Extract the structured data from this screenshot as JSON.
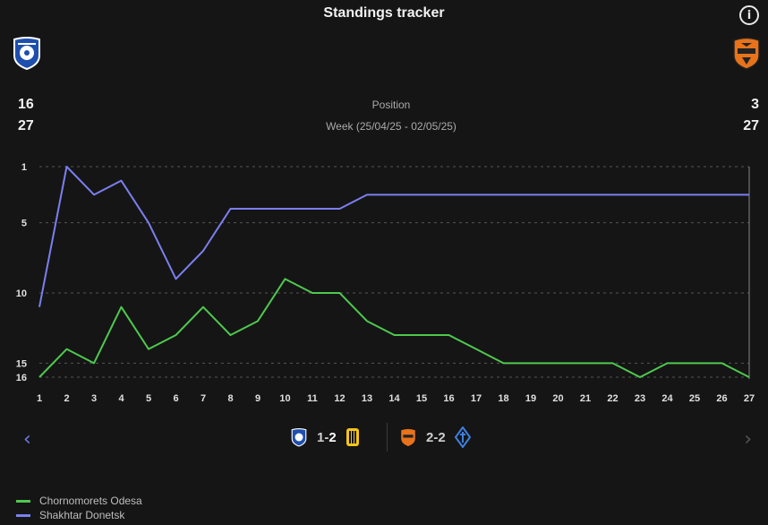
{
  "header": {
    "title": "Standings tracker",
    "info_icon": "info-icon"
  },
  "teams": {
    "home": {
      "name": "Chornomorets Odesa",
      "position": "16",
      "week": "27",
      "color": "#4ec94e"
    },
    "away": {
      "name": "Shakhtar Donetsk",
      "position": "3",
      "week": "27",
      "color": "#7b7ff0"
    }
  },
  "labels": {
    "position": "Position",
    "week": "Week (25/04/25 - 02/05/25)"
  },
  "matches": [
    {
      "home_score": "1",
      "away_score": "2",
      "sep": "-"
    },
    {
      "home_score": "2",
      "away_score": "2",
      "sep": "-"
    }
  ],
  "chart_data": {
    "type": "line",
    "x": [
      1,
      2,
      3,
      4,
      5,
      6,
      7,
      8,
      9,
      10,
      11,
      12,
      13,
      14,
      15,
      16,
      17,
      18,
      19,
      20,
      21,
      22,
      23,
      24,
      25,
      26,
      27
    ],
    "y_ticks": [
      1,
      5,
      10,
      15,
      16
    ],
    "y_reversed": true,
    "ylim": [
      1,
      16
    ],
    "series": [
      {
        "name": "Chornomorets Odesa",
        "color": "#4ec94e",
        "values": [
          16,
          14,
          15,
          11,
          14,
          13,
          11,
          13,
          12,
          9,
          10,
          10,
          12,
          13,
          13,
          13,
          14,
          15,
          15,
          15,
          15,
          15,
          16,
          15,
          15,
          15,
          16
        ]
      },
      {
        "name": "Shakhtar Donetsk",
        "color": "#7b7ff0",
        "values": [
          11,
          1,
          3,
          2,
          5,
          9,
          7,
          4,
          4,
          4,
          4,
          4,
          3,
          3,
          3,
          3,
          3,
          3,
          3,
          3,
          3,
          3,
          3,
          3,
          3,
          3,
          3
        ]
      }
    ],
    "grid": true,
    "legend": "bottom-left"
  }
}
